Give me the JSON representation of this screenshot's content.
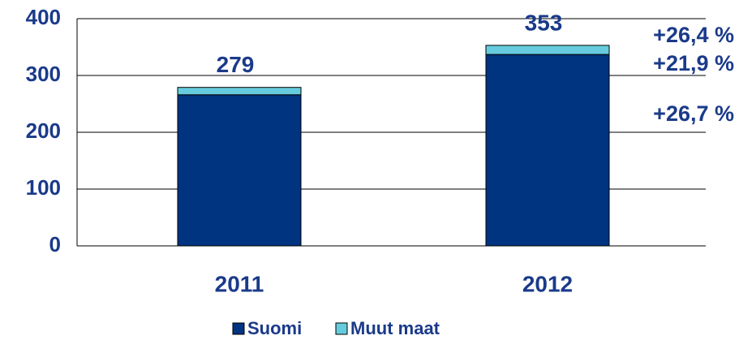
{
  "chart_data": {
    "type": "stacked_bar",
    "categories": [
      "2011",
      "2012"
    ],
    "series": [
      {
        "name": "Suomi",
        "color": "#003380",
        "values": [
          266,
          337
        ]
      },
      {
        "name": "Muut maat",
        "color": "#66ccdd",
        "values": [
          13,
          16
        ]
      }
    ],
    "totals": [
      279,
      353
    ],
    "annotations": [
      "+26,4 %",
      "+21,9 %",
      "+26,7 %"
    ],
    "ylim": [
      0,
      400
    ],
    "yticks": [
      0,
      100,
      200,
      300,
      400
    ],
    "grid": true
  }
}
